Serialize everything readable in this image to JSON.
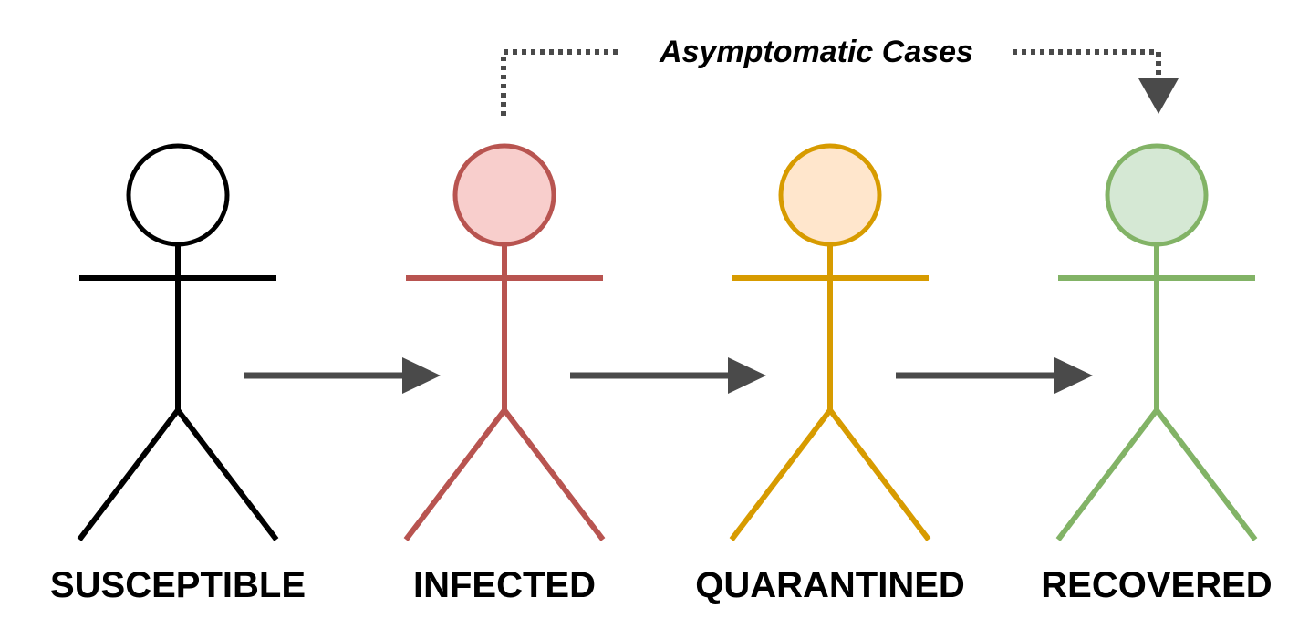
{
  "stages": [
    {
      "id": "susceptible",
      "label": "SUSCEPTIBLE",
      "stroke": "#000000",
      "fill": "#ffffff"
    },
    {
      "id": "infected",
      "label": "INFECTED",
      "stroke": "#b85450",
      "fill": "#f8cecc"
    },
    {
      "id": "quarantined",
      "label": "QUARANTINED",
      "stroke": "#d79b00",
      "fill": "#ffe6cc"
    },
    {
      "id": "recovered",
      "label": "RECOVERED",
      "stroke": "#82b366",
      "fill": "#d5e8d4"
    }
  ],
  "asymptomatic": {
    "label": "Asymptomatic Cases",
    "from": "infected",
    "to": "recovered"
  }
}
